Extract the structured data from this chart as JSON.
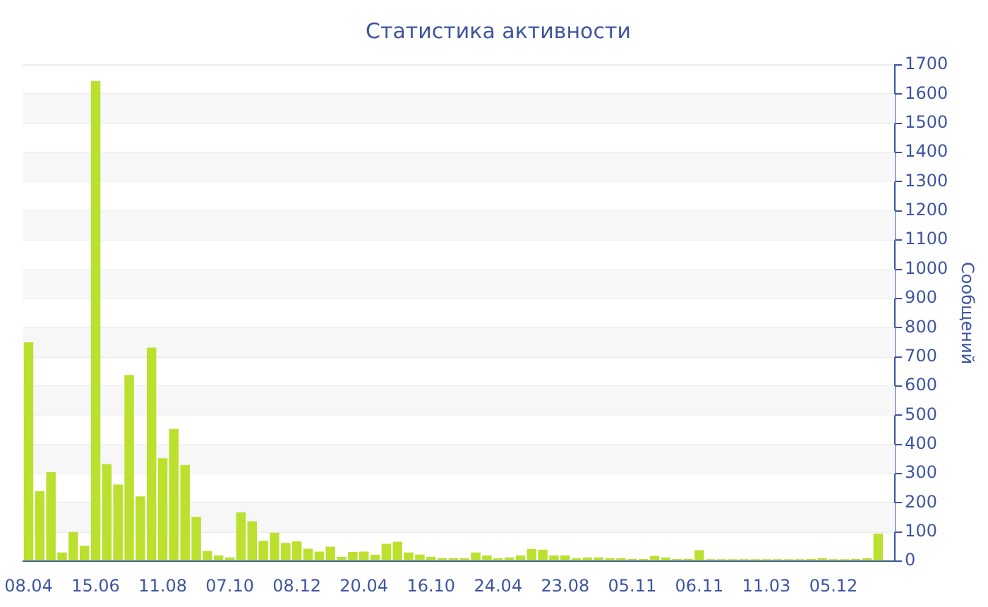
{
  "chart_data": {
    "type": "bar",
    "title": "Статистика активности",
    "ylabel": "Сообщений",
    "categories": [
      "08.04",
      null,
      null,
      null,
      null,
      null,
      "15.06",
      null,
      null,
      null,
      null,
      null,
      "11.08",
      null,
      null,
      null,
      null,
      null,
      "07.10",
      null,
      null,
      null,
      null,
      null,
      "08.12",
      null,
      null,
      null,
      null,
      null,
      "20.04",
      null,
      null,
      null,
      null,
      null,
      "16.10",
      null,
      null,
      null,
      null,
      null,
      "24.04",
      null,
      null,
      null,
      null,
      null,
      "23.08",
      null,
      null,
      null,
      null,
      null,
      "05.11",
      null,
      null,
      null,
      null,
      null,
      "06.11",
      null,
      null,
      null,
      null,
      null,
      "11.03",
      null,
      null,
      null,
      null,
      null,
      "05.12",
      null,
      null,
      null,
      null,
      null
    ],
    "values": [
      750,
      240,
      305,
      30,
      100,
      53,
      1645,
      333,
      263,
      638,
      222,
      732,
      353,
      453,
      330,
      152,
      35,
      20,
      13,
      168,
      137,
      70,
      98,
      63,
      68,
      43,
      33,
      50,
      15,
      32,
      33,
      22,
      60,
      67,
      30,
      23,
      15,
      10,
      10,
      10,
      30,
      20,
      10,
      13,
      20,
      42,
      40,
      20,
      20,
      10,
      13,
      13,
      10,
      10,
      8,
      8,
      18,
      13,
      8,
      8,
      38,
      7,
      7,
      7,
      7,
      7,
      7,
      7,
      7,
      7,
      8,
      10,
      7,
      7,
      8,
      10,
      95,
      5
    ],
    "color": "#bbe02e",
    "ylim": [
      0,
      1700
    ],
    "yticks": [
      0,
      100,
      200,
      300,
      400,
      500,
      600,
      700,
      800,
      900,
      1000,
      1100,
      1200,
      1300,
      1400,
      1500,
      1600,
      1700
    ],
    "grid": "y",
    "legend": false
  }
}
